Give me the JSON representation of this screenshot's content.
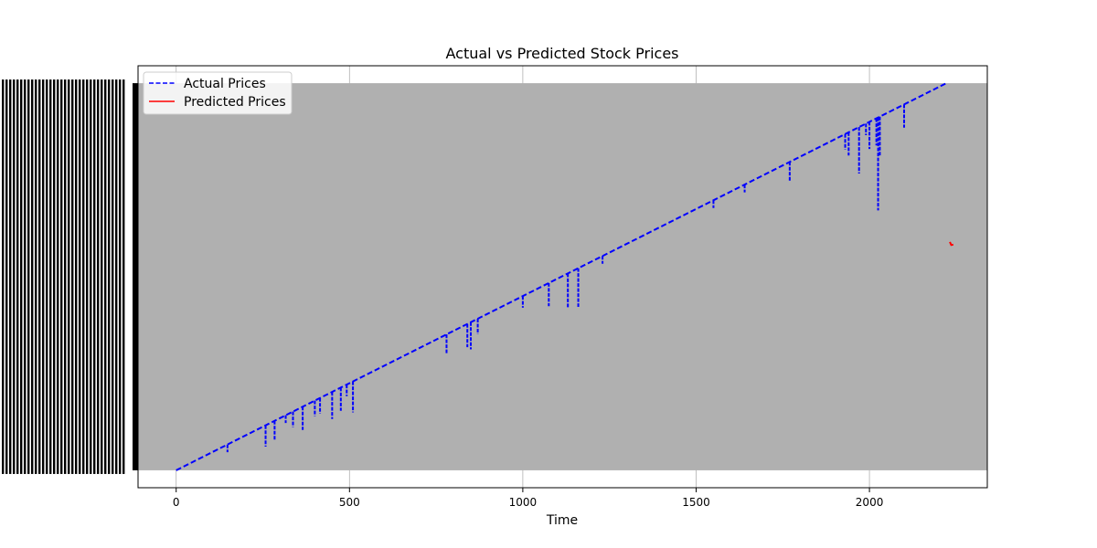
{
  "chart_data": {
    "type": "line",
    "title": "Actual vs Predicted Stock Prices",
    "xlabel": "Time",
    "ylabel": "",
    "xlim": [
      -110,
      2340
    ],
    "ylim": [
      -0.045,
      1.045
    ],
    "x_ticks": [
      0,
      500,
      1000,
      1500,
      2000
    ],
    "x_tick_labels": [
      "0",
      "500",
      "1000",
      "1500",
      "2000"
    ],
    "y_tick_labels_note": "",
    "grid": true,
    "legend_position": "top-left",
    "series": [
      {
        "name": "Actual Prices",
        "style": "dashed",
        "color": "#0000ff",
        "points": [
          [
            0,
            0.0
          ],
          [
            2222,
            1.0
          ]
        ],
        "dips": [
          [
            38,
            0.0
          ],
          [
            148,
            0.02
          ],
          [
            258,
            0.055
          ],
          [
            284,
            0.05
          ],
          [
            316,
            0.02
          ],
          [
            337,
            0.04
          ],
          [
            365,
            0.06
          ],
          [
            400,
            0.04
          ],
          [
            415,
            0.04
          ],
          [
            450,
            0.07
          ],
          [
            475,
            0.06
          ],
          [
            492,
            0.03
          ],
          [
            510,
            0.08
          ],
          [
            780,
            0.05
          ],
          [
            840,
            0.06
          ],
          [
            850,
            0.07
          ],
          [
            870,
            0.04
          ],
          [
            1000,
            0.03
          ],
          [
            1075,
            0.06
          ],
          [
            1130,
            0.09
          ],
          [
            1160,
            0.1
          ],
          [
            1230,
            0.02
          ],
          [
            1550,
            0.02
          ],
          [
            1640,
            0.02
          ],
          [
            1770,
            0.05
          ],
          [
            1930,
            0.04
          ],
          [
            1940,
            0.06
          ],
          [
            1970,
            0.12
          ],
          [
            1990,
            0.03
          ],
          [
            2000,
            0.07
          ],
          [
            2020,
            0.07
          ],
          [
            2025,
            0.24
          ],
          [
            2030,
            0.1
          ],
          [
            2100,
            0.06
          ]
        ]
      },
      {
        "name": "Predicted Prices",
        "style": "solid",
        "color": "#ff0000",
        "points": [
          [
            2232,
            0.59
          ],
          [
            2236,
            0.582
          ],
          [
            2242,
            0.583
          ]
        ]
      }
    ]
  },
  "colors": {
    "plot_fill": "#b0b0b0",
    "actual": "#0000ff",
    "predicted": "#ff0000",
    "axis": "#000000",
    "grid": "#b0b0b0"
  }
}
